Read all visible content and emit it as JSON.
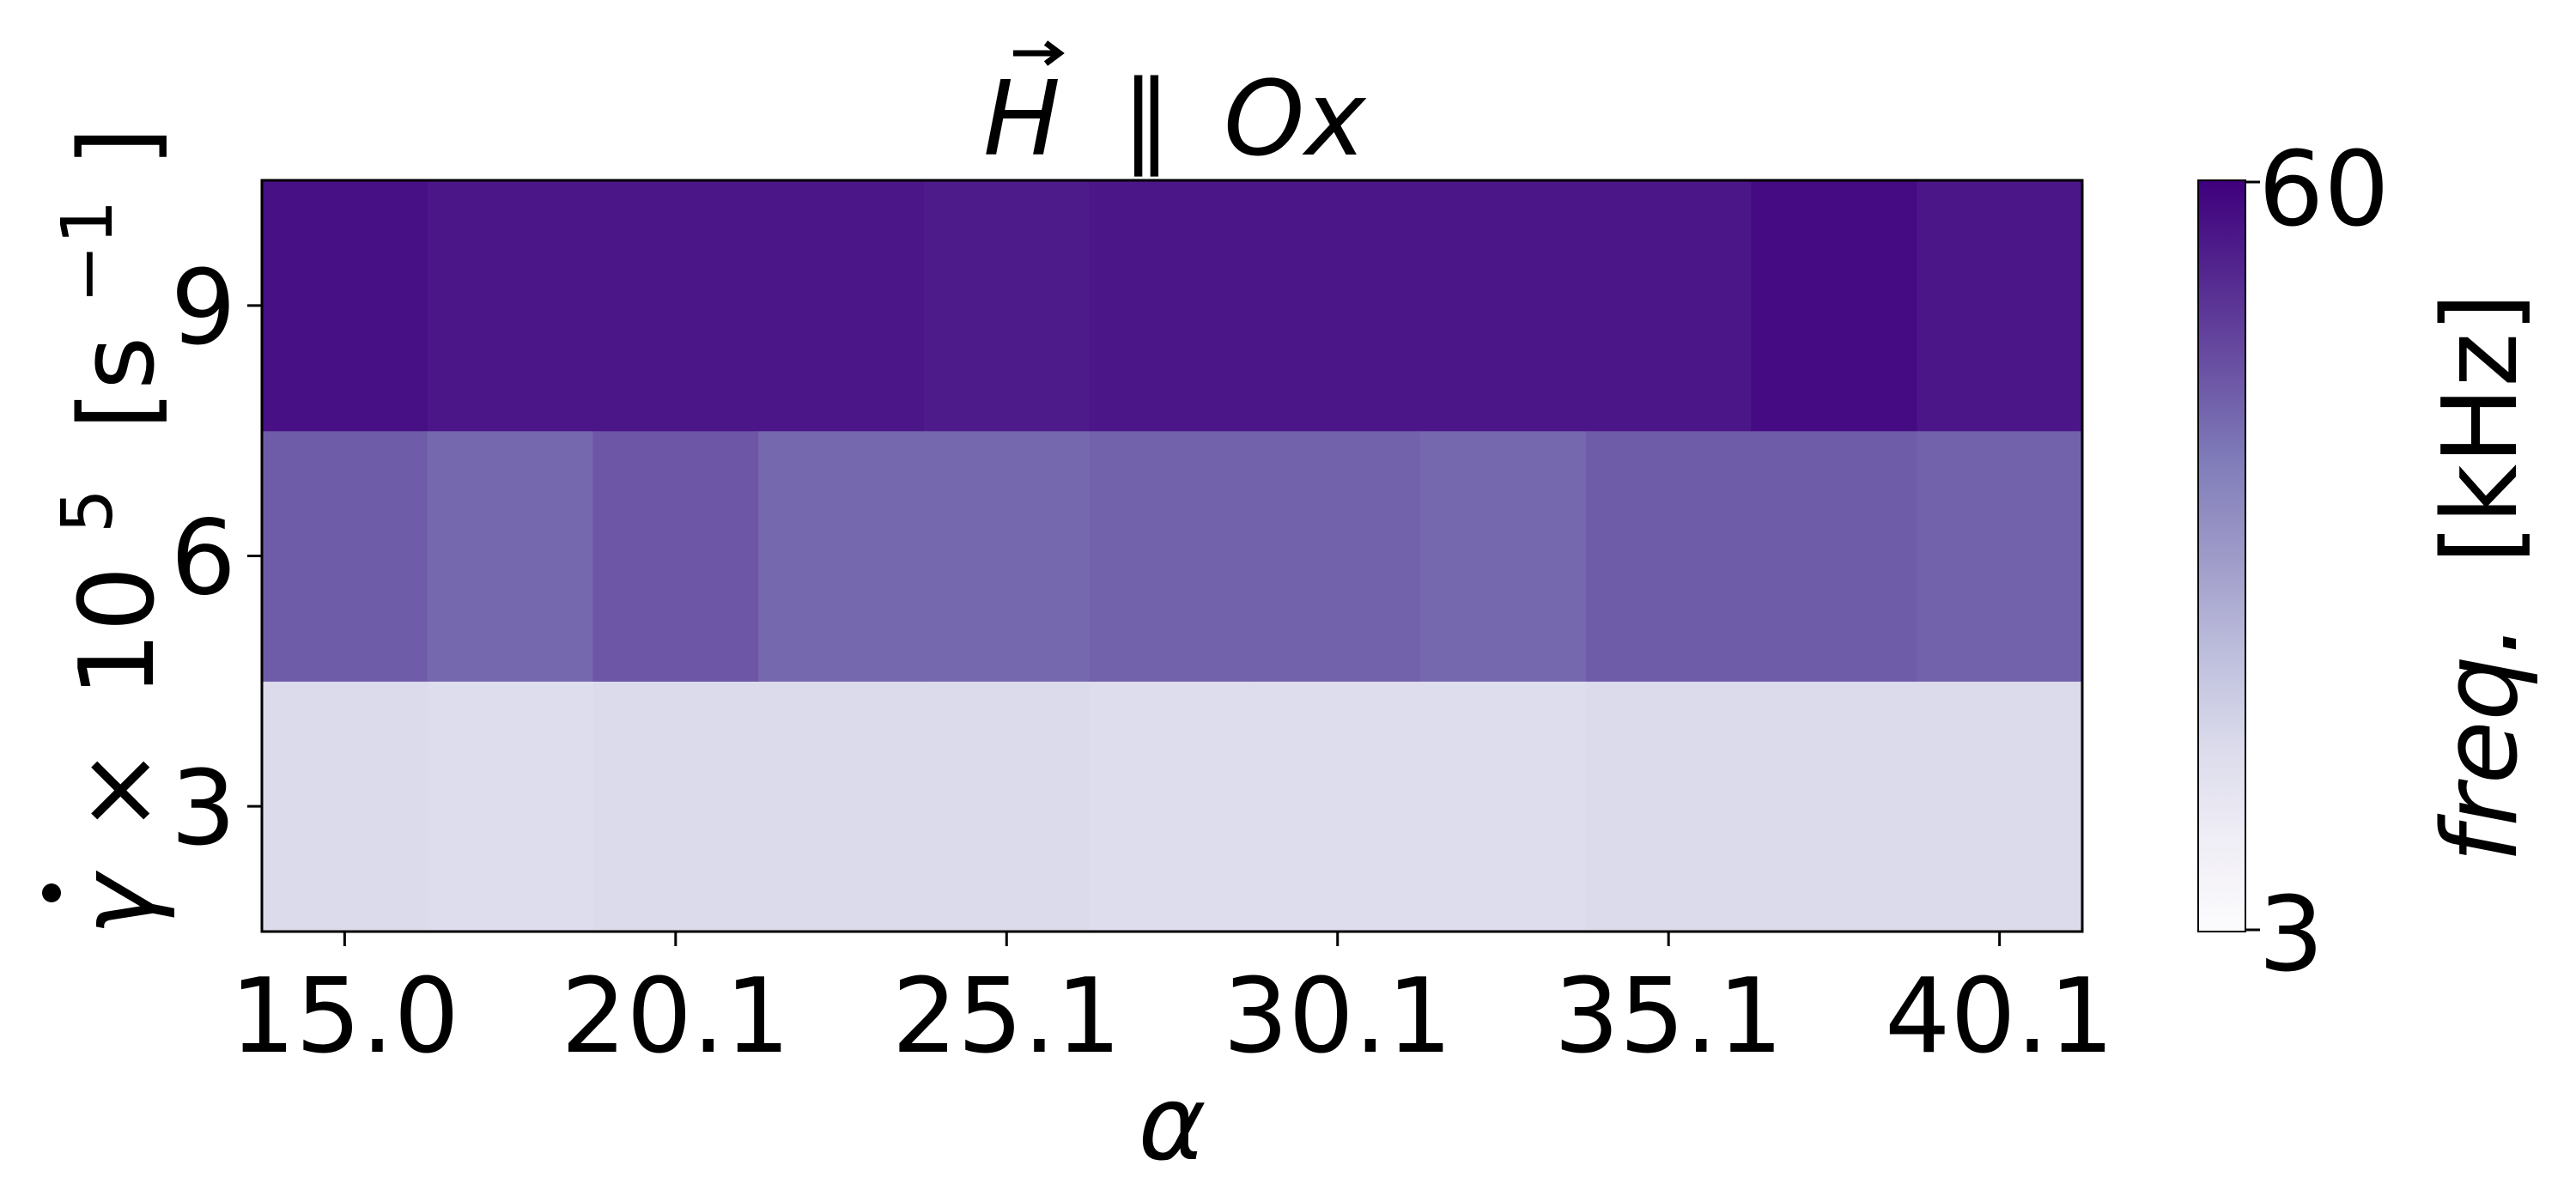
{
  "chart_data": {
    "type": "heatmap",
    "title": "H ∥ Ox",
    "title_parts": {
      "field": "H",
      "parallel": "∥",
      "axis": "Ox"
    },
    "xlabel": "α",
    "ylabel": "γ̇ × 10⁵ [s⁻¹]",
    "ylabel_parts": {
      "symbol": "γ",
      "times": "×",
      "base": "10",
      "exp": "5",
      "unit_open": "[s",
      "unit_exp": "−1",
      "unit_close": "]"
    },
    "x": [
      "15.0",
      "17.6",
      "20.1",
      "22.6",
      "25.1",
      "27.6",
      "30.1",
      "32.6",
      "35.1",
      "37.6",
      "40.1"
    ],
    "x_tick_labels": [
      "15.0",
      "20.1",
      "25.1",
      "30.1",
      "35.1",
      "40.1"
    ],
    "y": [
      "3",
      "6",
      "9"
    ],
    "y_tick_labels": [
      "3",
      "6",
      "9"
    ],
    "values": [
      [
        17,
        16,
        17,
        17,
        17,
        16,
        16,
        16,
        17,
        17,
        17
      ],
      [
        44,
        42,
        45,
        42,
        42,
        43,
        43,
        42,
        44,
        44,
        43
      ],
      [
        57,
        56,
        56,
        56,
        55,
        56,
        56,
        56,
        56,
        58,
        56
      ]
    ],
    "colorbar": {
      "label": "freq. [kHz]",
      "label_parts": {
        "quantity": "freq.",
        "unit": "[kHz]"
      },
      "min": 3,
      "max": 60,
      "tick_labels": [
        "3",
        "60"
      ],
      "colormap": "Purples",
      "color_low": "#fcfbfd",
      "color_high": "#3f007d"
    },
    "grid": false
  }
}
